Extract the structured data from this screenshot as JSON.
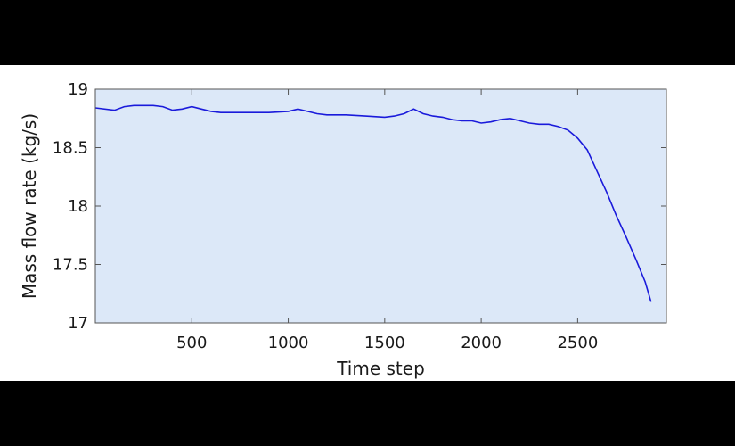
{
  "chart_data": {
    "type": "line",
    "title": "",
    "xlabel": "Time step",
    "ylabel": "Mass flow rate (kg/s)",
    "xlim": [
      0,
      2960
    ],
    "ylim": [
      17,
      19
    ],
    "xticks": [
      500,
      1000,
      1500,
      2000,
      2500
    ],
    "yticks": [
      17,
      17.5,
      18,
      18.5,
      19
    ],
    "xtick_labels": [
      "500",
      "1000",
      "1500",
      "2000",
      "2500"
    ],
    "ytick_labels": [
      "17",
      "17.5",
      "18",
      "18.5",
      "19"
    ],
    "grid": false,
    "legend": "none",
    "colors": {
      "plot_background": "#dce8f8",
      "line": "#1a1adb",
      "page_background": "#000000",
      "figure_background": "#ffffff"
    },
    "series": [
      {
        "x": [
          0,
          100,
          150,
          200,
          250,
          300,
          350,
          400,
          450,
          500,
          550,
          600,
          650,
          700,
          800,
          900,
          1000,
          1050,
          1100,
          1150,
          1200,
          1300,
          1400,
          1500,
          1550,
          1600,
          1650,
          1700,
          1750,
          1800,
          1850,
          1900,
          1950,
          2000,
          2050,
          2100,
          2150,
          2200,
          2250,
          2300,
          2350,
          2400,
          2450,
          2500,
          2550,
          2600,
          2650,
          2700,
          2750,
          2800,
          2850,
          2880
        ],
        "y": [
          18.84,
          18.82,
          18.85,
          18.86,
          18.86,
          18.86,
          18.85,
          18.82,
          18.83,
          18.85,
          18.83,
          18.81,
          18.8,
          18.8,
          18.8,
          18.8,
          18.81,
          18.83,
          18.81,
          18.79,
          18.78,
          18.78,
          18.77,
          18.76,
          18.77,
          18.79,
          18.83,
          18.79,
          18.77,
          18.76,
          18.74,
          18.73,
          18.73,
          18.71,
          18.72,
          18.74,
          18.75,
          18.73,
          18.71,
          18.7,
          18.7,
          18.68,
          18.65,
          18.58,
          18.48,
          18.3,
          18.12,
          17.92,
          17.74,
          17.55,
          17.35,
          17.18
        ]
      }
    ]
  }
}
